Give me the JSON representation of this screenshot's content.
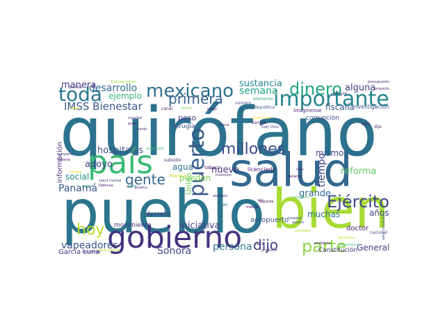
{
  "words": [
    {
      "text": "quirófano",
      "color": "#2c728e"
    },
    {
      "text": "salud",
      "color": "#31688e"
    },
    {
      "text": "pueblo",
      "color": "#2b758e"
    },
    {
      "text": "bien",
      "color": "#a8db34"
    },
    {
      "text": "país",
      "color": "#3bbb75"
    },
    {
      "text": "gobierno",
      "color": "#46337e"
    },
    {
      "text": "importante",
      "color": "#24868e"
    },
    {
      "text": "mexicano",
      "color": "#2d708e"
    },
    {
      "text": "toda",
      "color": "#2a788e"
    },
    {
      "text": "millones",
      "color": "#3e4a89"
    },
    {
      "text": "puerto",
      "color": "#375a8c"
    },
    {
      "text": "Ejército",
      "color": "#3f4889"
    },
    {
      "text": "parte",
      "color": "#8ed645"
    },
    {
      "text": "dinero",
      "color": "#21a685"
    },
    {
      "text": "hoy",
      "color": "#bade28"
    },
    {
      "text": "gente",
      "color": "#31668e"
    },
    {
      "text": "dijo",
      "color": "#424086"
    },
    {
      "text": "primera",
      "color": "#355f8d"
    },
    {
      "text": "IMSS Bienestar",
      "color": "#39568c"
    },
    {
      "text": "desarrollo",
      "color": "#2f6b8e"
    },
    {
      "text": "manera",
      "color": "#443a83"
    },
    {
      "text": "ejemplo",
      "color": "#35b779"
    },
    {
      "text": "semana",
      "color": "#1fa187"
    },
    {
      "text": "sustancia",
      "color": "#25848e"
    },
    {
      "text": "alguna",
      "color": "#433e85"
    },
    {
      "text": "fiscalía",
      "color": "#3a548c"
    },
    {
      "text": "tiempo",
      "color": "#404387"
    },
    {
      "text": "reforma",
      "color": "#5ec962"
    },
    {
      "text": "mismo",
      "color": "#3f4788"
    },
    {
      "text": "hospitales",
      "color": "#3b518b"
    },
    {
      "text": "apoyo",
      "color": "#414487"
    },
    {
      "text": "social",
      "color": "#238a8d"
    },
    {
      "text": "Panamá",
      "color": "#3b528b"
    },
    {
      "text": "agua",
      "color": "#2e6f8e"
    },
    {
      "text": "nuevo",
      "color": "#453581"
    },
    {
      "text": "pueden",
      "color": "#7ad151"
    },
    {
      "text": "grande",
      "color": "#31678e"
    },
    {
      "text": "muchas",
      "color": "#2d718e"
    },
    {
      "text": "años",
      "color": "#3f4788"
    },
    {
      "text": "vapeadores",
      "color": "#3b518b"
    },
    {
      "text": "Sonora",
      "color": "#3e4989"
    },
    {
      "text": "persona",
      "color": "#2a788e"
    },
    {
      "text": "iniciativa",
      "color": "#433e85"
    },
    {
      "text": "General",
      "color": "#404387"
    },
    {
      "text": "aeropuerto",
      "color": "#3b518b"
    },
    {
      "text": "doctor",
      "color": "#482374"
    },
    {
      "text": "García Luna",
      "color": "#453781"
    },
    {
      "text": "movimiento",
      "color": "#46307e"
    },
    {
      "text": "Constitución",
      "color": "#453781"
    },
    {
      "text": "información",
      "color": "#472d7b"
    },
    {
      "text": "Unido",
      "color": "#6ece58"
    },
    {
      "text": "peso",
      "color": "#46327e"
    },
    {
      "text": "cirugía",
      "color": "#3d4e8a"
    },
    {
      "text": "tabaco",
      "color": "#470e61"
    },
    {
      "text": "licenciado",
      "color": "#481b6d"
    },
    {
      "text": "corrupción",
      "color": "#3e4c8a"
    },
    {
      "text": "cinco",
      "color": "#26828e"
    },
    {
      "text": "Imagínense",
      "color": "#482475"
    },
    {
      "text": "investigación",
      "color": "#3d4d8a"
    },
    {
      "text": "decreto",
      "color": "#443983"
    },
    {
      "text": "Costa Rica",
      "color": "#fde725"
    },
    {
      "text": "Marina",
      "color": "#bddf26"
    },
    {
      "text": "República",
      "color": "#3b528b"
    },
    {
      "text": "elemento",
      "color": "#2db27d"
    },
    {
      "text": "siguiente",
      "color": "#482878"
    },
    {
      "text": "número",
      "color": "#3e4989"
    },
    {
      "text": "hacia",
      "color": "#471164"
    },
    {
      "text": "sangre",
      "color": "#482475"
    },
    {
      "text": "Daly Ortiz",
      "color": "#3f4788"
    },
    {
      "text": "cargo",
      "color": "#46085c"
    },
    {
      "text": "último",
      "color": "#75d054"
    },
    {
      "text": "canal",
      "color": "#481769"
    },
    {
      "text": "presupuesto",
      "color": "#482878"
    },
    {
      "text": "proyecto",
      "color": "#482475"
    },
    {
      "text": "política",
      "color": "#472d7b"
    },
    {
      "text": "Coatzacoalcos",
      "color": "#a0da39"
    },
    {
      "text": "mundial",
      "color": "#44397f"
    },
    {
      "text": "poder",
      "color": "#481b6d"
    },
    {
      "text": "mundo",
      "color": "#46337e"
    },
    {
      "text": "saber",
      "color": "#d2e21b"
    },
    {
      "text": "sólo",
      "color": "#48186a"
    },
    {
      "text": "dije",
      "color": "#482173"
    },
    {
      "text": "campaña",
      "color": "#46327e"
    },
    {
      "text": "todavía",
      "color": "#481467"
    },
    {
      "text": "médico",
      "color": "#e5e419"
    },
    {
      "text": "seguridad",
      "color": "#44bf70"
    },
    {
      "text": "subsidio",
      "color": "#482878"
    },
    {
      "text": "salud mental",
      "color": "#3e4c8a"
    },
    {
      "text": "mayor",
      "color": "#28ae80"
    },
    {
      "text": "Defensa",
      "color": "#482071"
    },
    {
      "text": "pública",
      "color": "#463480"
    },
    {
      "text": "atención",
      "color": "#481c6e"
    },
    {
      "text": "trabajo",
      "color": "#471365"
    },
    {
      "text": "adicciones",
      "color": "#453882"
    },
    {
      "text": "salud pública",
      "color": "#b5de2b"
    },
    {
      "text": "segunda",
      "color": "#46085c"
    },
    {
      "text": "hospital",
      "color": "#3b528b"
    },
    {
      "text": "lado",
      "color": "#481c6e"
    },
    {
      "text": "derecho",
      "color": "#46075a"
    },
    {
      "text": "nacional",
      "color": "#3f4788"
    },
    {
      "text": "obra",
      "color": "#472f7d"
    },
    {
      "text": "producto",
      "color": "#481a6c"
    },
    {
      "text": "problema",
      "color": "#440154"
    },
    {
      "text": "administración",
      "color": "#3b528b"
    },
    {
      "text": "asunto",
      "color": "#3b528b"
    },
    {
      "text": "pacientes",
      "color": "#c2df23"
    },
    {
      "text": "momento",
      "color": "#4ac16d"
    },
    {
      "text": "medicamentos",
      "color": "#2fb47c"
    },
    {
      "text": "inversión",
      "color": "#482677"
    },
    {
      "text": "sociedad",
      "color": "#b5de2b"
    },
    {
      "text": "vez",
      "color": "#481b6d"
    },
    {
      "text": "tan",
      "color": "#2a788e"
    },
    {
      "text": "lugar",
      "color": "#1e9c89"
    }
  ]
}
